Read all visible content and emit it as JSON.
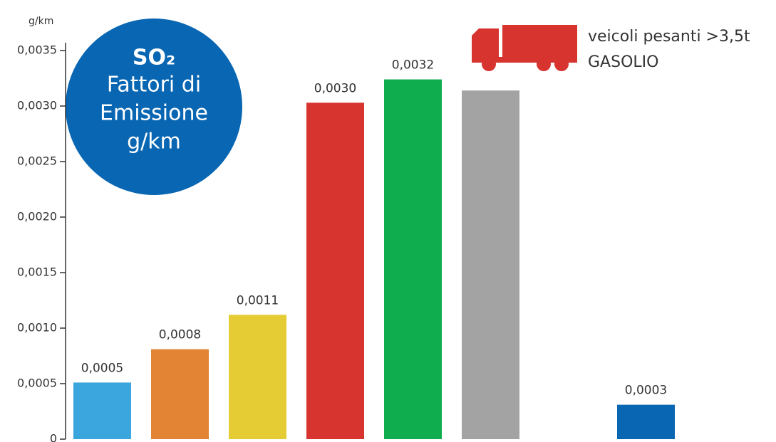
{
  "chart_data": {
    "type": "bar",
    "title": "SO₂",
    "subtitle": [
      "Fattori di",
      "Emissione",
      "g/km"
    ],
    "ylabel": "g/km",
    "legend_label": [
      "veicoli pesanti >3,5t",
      "GASOLIO"
    ],
    "categories": [
      null,
      null,
      null,
      null,
      null,
      null,
      null,
      null
    ],
    "values": [
      0.00051,
      0.00081,
      0.00112,
      0.00303,
      0.00324,
      0.00314,
      null,
      0.00031
    ],
    "value_labels": [
      "0,0005",
      "0,0008",
      "0,0011",
      "0,0030",
      "0,0032",
      null,
      null,
      "0,0003"
    ],
    "colors": [
      "#3aa6dd",
      "#e28433",
      "#e5cc35",
      "#d73430",
      "#10ad4f",
      "#a3a3a3",
      null,
      "#0866b2"
    ],
    "ylim": [
      0,
      0.0035
    ],
    "yticks": [
      0,
      {
        "value": 0.0005,
        "label": "0,0005"
      },
      {
        "value": 0.001,
        "label": "0,0010"
      },
      {
        "value": 0.0015,
        "label": "0,0015"
      },
      {
        "value": 0.002,
        "label": "0,0020"
      },
      {
        "value": 0.0025,
        "label": "0,0025"
      },
      {
        "value": 0.003,
        "label": "0,0030"
      },
      {
        "value": 0.0035,
        "label": "0,0035"
      }
    ],
    "legend_color": "#d73430",
    "badge_color": "#0866b2"
  }
}
